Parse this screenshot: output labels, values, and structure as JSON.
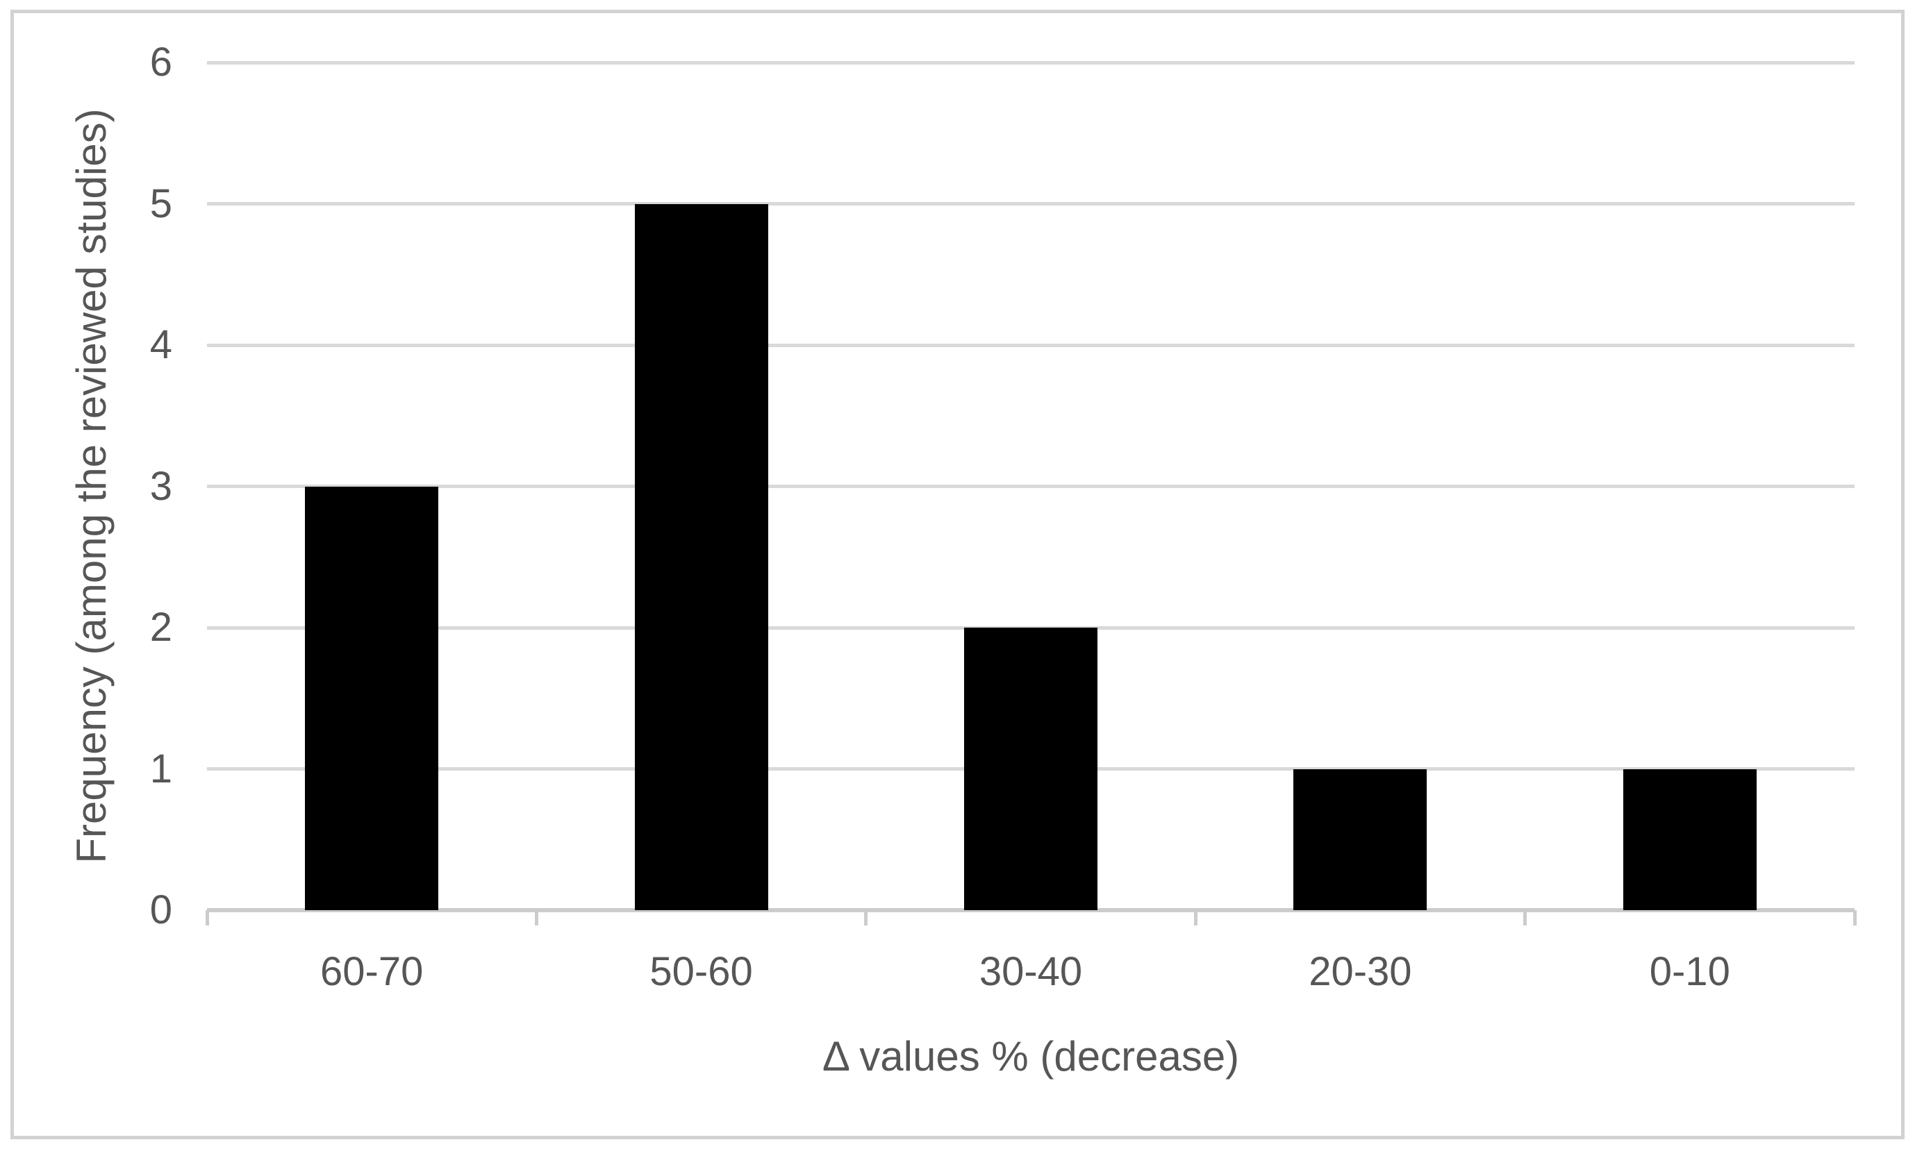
{
  "chart_data": {
    "type": "bar",
    "categories": [
      "60-70",
      "50-60",
      "30-40",
      "20-30",
      "0-10"
    ],
    "values": [
      3,
      5,
      2,
      1,
      1
    ],
    "title": "",
    "xlabel": "Δ values % (decrease)",
    "ylabel": "Frequency (among the reviewed studies)",
    "ylim": [
      0,
      6
    ],
    "yticks": [
      0,
      1,
      2,
      3,
      4,
      5,
      6
    ],
    "grid": true,
    "legend": "none",
    "colors": {
      "bar": "#000000",
      "gridline": "#d9d9d9",
      "axis_line": "#cccccc",
      "text": "#565656",
      "frame_border": "#d2d2d2",
      "background": "#ffffff"
    }
  }
}
